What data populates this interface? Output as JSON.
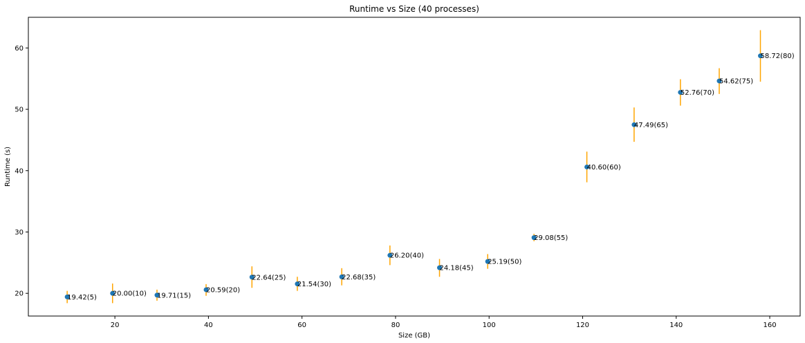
{
  "chart_data": {
    "type": "scatter",
    "title": "Runtime vs Size (40 processes)",
    "xlabel": "Size (GB)",
    "ylabel": "Runtime (s)",
    "xlim": [
      1.5,
      166.5
    ],
    "ylim": [
      16.3,
      65
    ],
    "xticks": [
      20,
      40,
      60,
      80,
      100,
      120,
      140,
      160
    ],
    "yticks": [
      20,
      30,
      40,
      50,
      60
    ],
    "grid": false,
    "marker_color": "#1f77b4",
    "errorbar_color": "#ffa500",
    "points": [
      {
        "x": 9.8,
        "y": 19.42,
        "yerr_low": 18.4,
        "yerr_high": 20.4,
        "label": "19.42(5)"
      },
      {
        "x": 19.5,
        "y": 20.0,
        "yerr_low": 18.4,
        "yerr_high": 21.6,
        "label": "20.00(10)"
      },
      {
        "x": 29.0,
        "y": 19.71,
        "yerr_low": 18.8,
        "yerr_high": 20.6,
        "label": "19.71(15)"
      },
      {
        "x": 39.5,
        "y": 20.59,
        "yerr_low": 19.6,
        "yerr_high": 21.5,
        "label": "20.59(20)"
      },
      {
        "x": 49.3,
        "y": 22.64,
        "yerr_low": 20.9,
        "yerr_high": 24.4,
        "label": "22.64(25)"
      },
      {
        "x": 59.0,
        "y": 21.54,
        "yerr_low": 20.4,
        "yerr_high": 22.7,
        "label": "21.54(30)"
      },
      {
        "x": 68.5,
        "y": 22.68,
        "yerr_low": 21.3,
        "yerr_high": 24.1,
        "label": "22.68(35)"
      },
      {
        "x": 78.8,
        "y": 26.2,
        "yerr_low": 24.6,
        "yerr_high": 27.8,
        "label": "26.20(40)"
      },
      {
        "x": 89.4,
        "y": 24.18,
        "yerr_low": 22.7,
        "yerr_high": 25.6,
        "label": "24.18(45)"
      },
      {
        "x": 99.7,
        "y": 25.19,
        "yerr_low": 24.0,
        "yerr_high": 26.4,
        "label": "25.19(50)"
      },
      {
        "x": 109.6,
        "y": 29.08,
        "yerr_low": 28.5,
        "yerr_high": 29.7,
        "label": "29.08(55)"
      },
      {
        "x": 120.9,
        "y": 40.6,
        "yerr_low": 38.1,
        "yerr_high": 43.1,
        "label": "40.60(60)"
      },
      {
        "x": 131.0,
        "y": 47.49,
        "yerr_low": 44.7,
        "yerr_high": 50.3,
        "label": "47.49(65)"
      },
      {
        "x": 140.9,
        "y": 52.76,
        "yerr_low": 50.6,
        "yerr_high": 54.9,
        "label": "52.76(70)"
      },
      {
        "x": 149.2,
        "y": 54.62,
        "yerr_low": 52.5,
        "yerr_high": 56.7,
        "label": "54.62(75)"
      },
      {
        "x": 158.0,
        "y": 58.72,
        "yerr_low": 54.5,
        "yerr_high": 62.9,
        "label": "58.72(80)"
      }
    ]
  }
}
